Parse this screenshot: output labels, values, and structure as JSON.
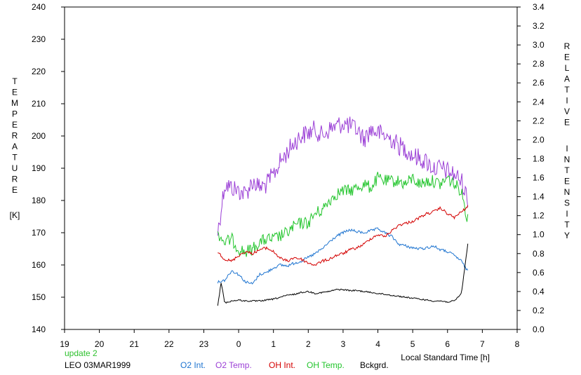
{
  "chart_data": {
    "type": "line",
    "xlabel": "Local Standard Time [h]",
    "ylabel_left": "TEMPERATURE",
    "ylabel_left_unit": "[K]",
    "ylabel_right": "RELATIVE INTENSITY",
    "x_ticks": [
      "19",
      "20",
      "21",
      "22",
      "23",
      "0",
      "1",
      "2",
      "3",
      "4",
      "5",
      "6",
      "7",
      "8"
    ],
    "x_range": [
      19,
      32
    ],
    "y_left_ticks": [
      "140",
      "150",
      "160",
      "170",
      "180",
      "190",
      "200",
      "210",
      "220",
      "230",
      "240"
    ],
    "y_left_range": [
      140,
      240
    ],
    "y_right_ticks": [
      "0.0",
      "0.2",
      "0.4",
      "0.6",
      "0.8",
      "1.0",
      "1.2",
      "1.4",
      "1.6",
      "1.8",
      "2.0",
      "2.2",
      "2.4",
      "2.6",
      "2.8",
      "3.0",
      "3.2",
      "3.4"
    ],
    "y_right_range": [
      0.0,
      3.4
    ],
    "grid": false,
    "series": [
      {
        "name": "O2 Int.",
        "color": "#1e74d0",
        "axis": "right",
        "x": [
          23.4,
          23.6,
          23.8,
          24.0,
          24.2,
          24.4,
          24.6,
          24.8,
          25.0,
          25.2,
          25.4,
          25.6,
          25.8,
          26.0,
          26.2,
          26.4,
          26.6,
          26.8,
          27.0,
          27.2,
          27.4,
          27.6,
          27.8,
          28.0,
          28.2,
          28.4,
          28.6,
          28.8,
          29.0,
          29.2,
          29.4,
          29.6,
          29.8,
          30.0,
          30.2,
          30.4,
          30.6
        ],
        "y": [
          0.5,
          0.52,
          0.62,
          0.58,
          0.5,
          0.48,
          0.58,
          0.6,
          0.65,
          0.68,
          0.67,
          0.7,
          0.72,
          0.76,
          0.8,
          0.85,
          0.92,
          0.98,
          1.02,
          1.05,
          1.03,
          1.02,
          1.04,
          1.06,
          1.02,
          0.98,
          0.9,
          0.88,
          0.86,
          0.85,
          0.86,
          0.88,
          0.84,
          0.82,
          0.78,
          0.72,
          0.6
        ]
      },
      {
        "name": "O2 Temp.",
        "color": "#9b3fd6",
        "axis": "left",
        "x": [
          23.4,
          23.6,
          23.8,
          24.0,
          24.2,
          24.4,
          24.6,
          24.8,
          25.0,
          25.2,
          25.4,
          25.6,
          25.8,
          26.0,
          26.2,
          26.4,
          26.6,
          26.8,
          27.0,
          27.2,
          27.4,
          27.6,
          27.8,
          28.0,
          28.2,
          28.4,
          28.6,
          28.8,
          29.0,
          29.2,
          29.4,
          29.6,
          29.8,
          30.0,
          30.2,
          30.4,
          30.6
        ],
        "y": [
          170,
          185,
          184,
          183,
          182,
          186,
          184,
          185,
          188,
          192,
          195,
          198,
          200,
          201,
          202,
          200,
          202,
          203,
          204,
          203,
          202,
          199,
          202,
          201,
          200,
          199,
          197,
          196,
          194,
          193,
          192,
          190,
          190,
          189,
          188,
          186,
          180
        ]
      },
      {
        "name": "OH Int.",
        "color": "#d40000",
        "axis": "right",
        "x": [
          23.4,
          23.6,
          23.8,
          24.0,
          24.2,
          24.4,
          24.6,
          24.8,
          25.0,
          25.2,
          25.4,
          25.6,
          25.8,
          26.0,
          26.2,
          26.4,
          26.6,
          26.8,
          27.0,
          27.2,
          27.4,
          27.6,
          27.8,
          28.0,
          28.2,
          28.4,
          28.6,
          28.8,
          29.0,
          29.2,
          29.4,
          29.6,
          29.8,
          30.0,
          30.2,
          30.4,
          30.6
        ],
        "y": [
          0.82,
          0.74,
          0.72,
          0.78,
          0.82,
          0.8,
          0.84,
          0.86,
          0.82,
          0.75,
          0.72,
          0.76,
          0.74,
          0.7,
          0.68,
          0.72,
          0.74,
          0.78,
          0.8,
          0.84,
          0.86,
          0.9,
          0.96,
          1.0,
          0.98,
          1.04,
          1.1,
          1.12,
          1.14,
          1.18,
          1.22,
          1.24,
          1.28,
          1.22,
          1.18,
          1.24,
          1.3
        ]
      },
      {
        "name": "OH Temp.",
        "color": "#22c52c",
        "axis": "left",
        "x": [
          23.4,
          23.6,
          23.8,
          24.0,
          24.2,
          24.4,
          24.6,
          24.8,
          25.0,
          25.2,
          25.4,
          25.6,
          25.8,
          26.0,
          26.2,
          26.4,
          26.6,
          26.8,
          27.0,
          27.2,
          27.4,
          27.6,
          27.8,
          28.0,
          28.2,
          28.4,
          28.6,
          28.8,
          29.0,
          29.2,
          29.4,
          29.6,
          29.8,
          30.0,
          30.2,
          30.4,
          30.6
        ],
        "y": [
          170,
          167,
          168,
          165,
          164,
          165,
          167,
          168,
          168,
          169,
          170,
          172,
          173,
          173,
          176,
          177,
          180,
          182,
          183,
          183,
          184,
          185,
          184,
          187,
          186,
          186,
          186,
          185,
          187,
          185,
          186,
          186,
          185,
          187,
          185,
          183,
          173
        ]
      },
      {
        "name": "Bckgrd.",
        "color": "#000000",
        "axis": "right",
        "x": [
          23.4,
          23.5,
          23.6,
          23.8,
          24.0,
          24.2,
          24.4,
          24.6,
          24.8,
          25.0,
          25.2,
          25.4,
          25.6,
          25.8,
          26.0,
          26.2,
          26.4,
          26.6,
          26.8,
          27.0,
          27.2,
          27.4,
          27.6,
          27.8,
          28.0,
          28.2,
          28.4,
          28.6,
          28.8,
          29.0,
          29.2,
          29.4,
          29.6,
          29.8,
          30.0,
          30.2,
          30.4,
          30.6
        ],
        "y": [
          0.25,
          0.5,
          0.28,
          0.3,
          0.31,
          0.3,
          0.3,
          0.3,
          0.31,
          0.32,
          0.34,
          0.36,
          0.37,
          0.39,
          0.4,
          0.38,
          0.39,
          0.4,
          0.42,
          0.42,
          0.41,
          0.41,
          0.4,
          0.39,
          0.38,
          0.37,
          0.36,
          0.35,
          0.34,
          0.33,
          0.32,
          0.31,
          0.3,
          0.3,
          0.29,
          0.3,
          0.38,
          0.95
        ]
      }
    ]
  },
  "footer": {
    "update": "update 2",
    "station": "LEO 03MAR1999"
  },
  "colors": {
    "update_text": "#2fc12f",
    "axis": "#000000"
  }
}
